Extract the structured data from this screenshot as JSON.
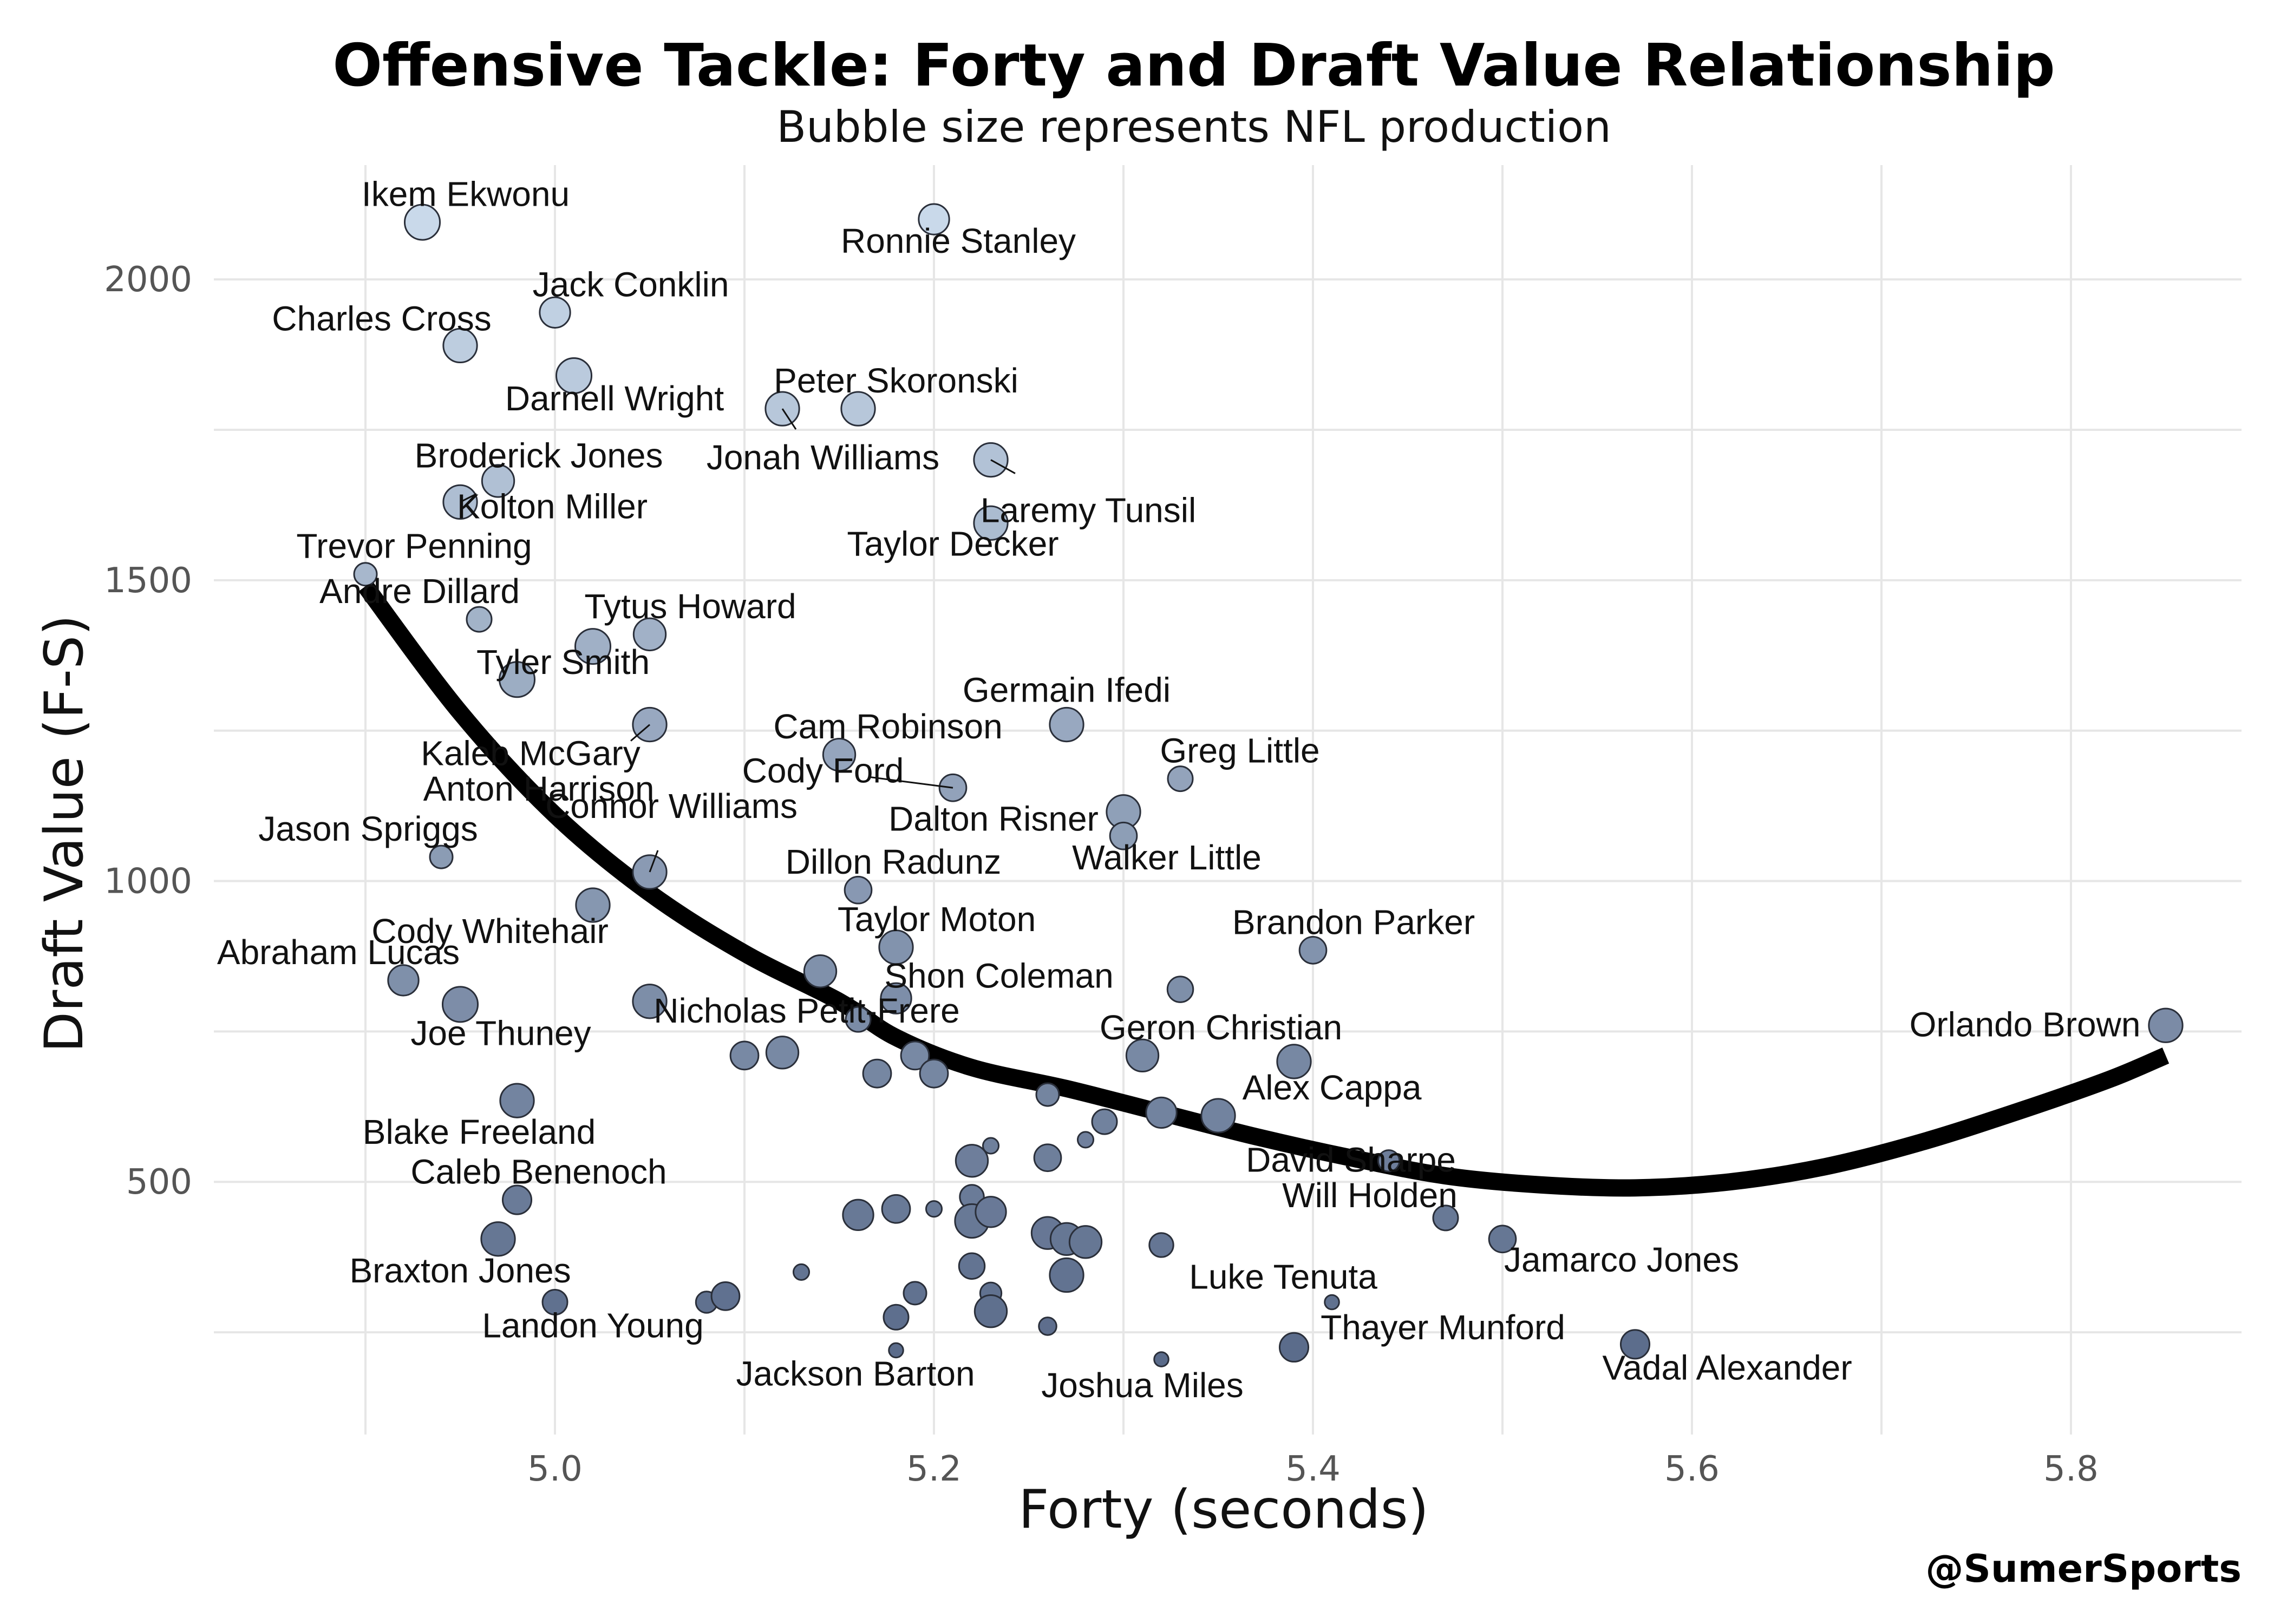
{
  "chart_data": {
    "type": "scatter",
    "title": "Offensive Tackle: Forty and Draft Value Relationship",
    "subtitle": "Bubble size represents NFL production",
    "xlabel": "Forty (seconds)",
    "ylabel": "Draft Value (F-S)",
    "xlim": [
      4.82,
      5.89
    ],
    "ylim": [
      80,
      2190
    ],
    "xticks": [
      5.0,
      5.2,
      5.4,
      5.6,
      5.8
    ],
    "xtick_labels": [
      "5.0",
      "5.2",
      "5.4",
      "5.6",
      "5.8"
    ],
    "yticks": [
      500,
      1000,
      1500,
      2000
    ],
    "ytick_labels": [
      "500",
      "1000",
      "1500",
      "2000"
    ],
    "grid": true,
    "credit": "@SumerSports",
    "color_scale": {
      "high_value": "#c9d9ea",
      "low_value": "#5a6b8a"
    },
    "points": [
      {
        "name": "Ikem Ekwonu",
        "forty": 4.93,
        "value": 2095,
        "size": 60
      },
      {
        "name": "Ronnie Stanley",
        "forty": 5.2,
        "value": 2100,
        "size": 45
      },
      {
        "name": "Jack Conklin",
        "forty": 5.0,
        "value": 1945,
        "size": 45
      },
      {
        "name": "Charles Cross",
        "forty": 4.95,
        "value": 1890,
        "size": 55
      },
      {
        "name": "Darnell Wright",
        "forty": 5.01,
        "value": 1840,
        "size": 60
      },
      {
        "name": "Peter Skoronski",
        "forty": 5.16,
        "value": 1785,
        "size": 55
      },
      {
        "name": "Jonah Williams",
        "forty": 5.12,
        "value": 1785,
        "size": 55
      },
      {
        "name": "Laremy Tunsil",
        "forty": 5.23,
        "value": 1700,
        "size": 55
      },
      {
        "name": "Broderick Jones",
        "forty": 4.97,
        "value": 1665,
        "size": 50
      },
      {
        "name": "Kolton Miller",
        "forty": 4.95,
        "value": 1630,
        "size": 55
      },
      {
        "name": "Taylor Decker",
        "forty": 5.23,
        "value": 1595,
        "size": 55
      },
      {
        "name": "Trevor Penning",
        "forty": 4.9,
        "value": 1510,
        "size": 25
      },
      {
        "name": "Andre Dillard",
        "forty": 4.96,
        "value": 1435,
        "size": 30
      },
      {
        "name": "Tytus Howard",
        "forty": 5.05,
        "value": 1410,
        "size": 50
      },
      {
        "name": "Tyler Smith",
        "forty": 4.98,
        "value": 1335,
        "size": 60
      },
      {
        "name": "Anton Harrison",
        "forty": 5.02,
        "value": 1390,
        "size": 60
      },
      {
        "name": "Kaleb McGary",
        "forty": 5.05,
        "value": 1260,
        "size": 55
      },
      {
        "name": "Germain Ifedi",
        "forty": 5.27,
        "value": 1260,
        "size": 55
      },
      {
        "name": "Cam Robinson",
        "forty": 5.15,
        "value": 1210,
        "size": 50
      },
      {
        "name": "Greg Little",
        "forty": 5.33,
        "value": 1170,
        "size": 30
      },
      {
        "name": "Cody Ford",
        "forty": 5.21,
        "value": 1155,
        "size": 35
      },
      {
        "name": "Dalton Risner",
        "forty": 5.3,
        "value": 1115,
        "size": 55
      },
      {
        "name": "Walker Little",
        "forty": 5.3,
        "value": 1075,
        "size": 35
      },
      {
        "name": "Jason Spriggs",
        "forty": 4.94,
        "value": 1040,
        "size": 25
      },
      {
        "name": "Connor Williams",
        "forty": 5.05,
        "value": 1015,
        "size": 55
      },
      {
        "name": "Dillon Radunz",
        "forty": 5.16,
        "value": 985,
        "size": 35
      },
      {
        "name": "Cody Whitehair",
        "forty": 5.02,
        "value": 960,
        "size": 55
      },
      {
        "name": "Taylor Moton",
        "forty": 5.18,
        "value": 890,
        "size": 55
      },
      {
        "name": "Brandon Parker",
        "forty": 5.4,
        "value": 885,
        "size": 35
      },
      {
        "name": "Abraham Lucas",
        "forty": 4.92,
        "value": 835,
        "size": 45
      },
      {
        "name": "Nicholas Petit-Frere",
        "forty": 5.14,
        "value": 850,
        "size": 50
      },
      {
        "name": "Shon Coleman",
        "forty": 5.18,
        "value": 805,
        "size": 45
      },
      {
        "name": "Joe Thuney",
        "forty": 4.95,
        "value": 795,
        "size": 60
      },
      {
        "name": "Orlando Brown",
        "forty": 5.85,
        "value": 760,
        "size": 55
      },
      {
        "name": "Geron Christian",
        "forty": 5.31,
        "value": 710,
        "size": 50
      },
      {
        "name": "Blake Freeland",
        "forty": 4.98,
        "value": 635,
        "size": 55
      },
      {
        "name": "Alex Cappa",
        "forty": 5.35,
        "value": 610,
        "size": 55
      },
      {
        "name": "David Sharpe",
        "forty": 5.44,
        "value": 535,
        "size": 22
      },
      {
        "name": "Caleb Benenoch",
        "forty": 4.98,
        "value": 470,
        "size": 40
      },
      {
        "name": "Will Holden",
        "forty": 5.47,
        "value": 440,
        "size": 30
      },
      {
        "name": "Braxton Jones",
        "forty": 4.97,
        "value": 405,
        "size": 55
      },
      {
        "name": "Jamarco Jones",
        "forty": 5.5,
        "value": 405,
        "size": 35
      },
      {
        "name": "Luke Tenuta",
        "forty": 5.41,
        "value": 300,
        "size": 10
      },
      {
        "name": "Landon Young",
        "forty": 5.0,
        "value": 300,
        "size": 30
      },
      {
        "name": "Thayer Munford",
        "forty": 5.39,
        "value": 225,
        "size": 40
      },
      {
        "name": "Vadal Alexander",
        "forty": 5.57,
        "value": 230,
        "size": 40
      },
      {
        "name": "Jackson Barton",
        "forty": 5.18,
        "value": 220,
        "size": 10
      },
      {
        "name": "Joshua Miles",
        "forty": 5.32,
        "value": 205,
        "size": 10
      },
      {
        "name": "",
        "forty": 5.05,
        "value": 800,
        "size": 55
      },
      {
        "name": "",
        "forty": 5.1,
        "value": 710,
        "size": 38
      },
      {
        "name": "",
        "forty": 5.12,
        "value": 715,
        "size": 50
      },
      {
        "name": "",
        "forty": 5.16,
        "value": 770,
        "size": 30
      },
      {
        "name": "",
        "forty": 5.17,
        "value": 680,
        "size": 38
      },
      {
        "name": "",
        "forty": 5.19,
        "value": 710,
        "size": 38
      },
      {
        "name": "",
        "forty": 5.2,
        "value": 680,
        "size": 38
      },
      {
        "name": "",
        "forty": 5.26,
        "value": 645,
        "size": 25
      },
      {
        "name": "",
        "forty": 5.29,
        "value": 600,
        "size": 30
      },
      {
        "name": "",
        "forty": 5.28,
        "value": 570,
        "size": 12
      },
      {
        "name": "",
        "forty": 5.32,
        "value": 615,
        "size": 45
      },
      {
        "name": "",
        "forty": 5.33,
        "value": 820,
        "size": 32
      },
      {
        "name": "",
        "forty": 5.39,
        "value": 700,
        "size": 55
      },
      {
        "name": "",
        "forty": 5.22,
        "value": 535,
        "size": 50
      },
      {
        "name": "",
        "forty": 5.23,
        "value": 560,
        "size": 12
      },
      {
        "name": "",
        "forty": 5.26,
        "value": 540,
        "size": 35
      },
      {
        "name": "",
        "forty": 5.22,
        "value": 475,
        "size": 28
      },
      {
        "name": "",
        "forty": 5.16,
        "value": 445,
        "size": 45
      },
      {
        "name": "",
        "forty": 5.18,
        "value": 455,
        "size": 38
      },
      {
        "name": "",
        "forty": 5.2,
        "value": 455,
        "size": 12
      },
      {
        "name": "",
        "forty": 5.22,
        "value": 435,
        "size": 55
      },
      {
        "name": "",
        "forty": 5.23,
        "value": 450,
        "size": 45
      },
      {
        "name": "",
        "forty": 5.26,
        "value": 415,
        "size": 50
      },
      {
        "name": "",
        "forty": 5.27,
        "value": 405,
        "size": 50
      },
      {
        "name": "",
        "forty": 5.28,
        "value": 400,
        "size": 50
      },
      {
        "name": "",
        "forty": 5.32,
        "value": 395,
        "size": 28
      },
      {
        "name": "",
        "forty": 5.22,
        "value": 360,
        "size": 32
      },
      {
        "name": "",
        "forty": 5.13,
        "value": 350,
        "size": 12
      },
      {
        "name": "",
        "forty": 5.27,
        "value": 345,
        "size": 55
      },
      {
        "name": "",
        "forty": 5.08,
        "value": 300,
        "size": 22
      },
      {
        "name": "",
        "forty": 5.09,
        "value": 310,
        "size": 38
      },
      {
        "name": "",
        "forty": 5.18,
        "value": 275,
        "size": 30
      },
      {
        "name": "",
        "forty": 5.19,
        "value": 315,
        "size": 25
      },
      {
        "name": "",
        "forty": 5.23,
        "value": 315,
        "size": 22
      },
      {
        "name": "",
        "forty": 5.23,
        "value": 285,
        "size": 50
      },
      {
        "name": "",
        "forty": 5.26,
        "value": 260,
        "size": 15
      }
    ],
    "trend_line": {
      "x": [
        4.9,
        4.95,
        5.0,
        5.05,
        5.1,
        5.15,
        5.18,
        5.22,
        5.27,
        5.32,
        5.37,
        5.42,
        5.47,
        5.52,
        5.57,
        5.62,
        5.67,
        5.72,
        5.77,
        5.82,
        5.85
      ],
      "y": [
        1490,
        1280,
        1110,
        980,
        880,
        800,
        740,
        690,
        655,
        615,
        575,
        540,
        510,
        495,
        490,
        500,
        525,
        565,
        615,
        670,
        710
      ]
    }
  }
}
